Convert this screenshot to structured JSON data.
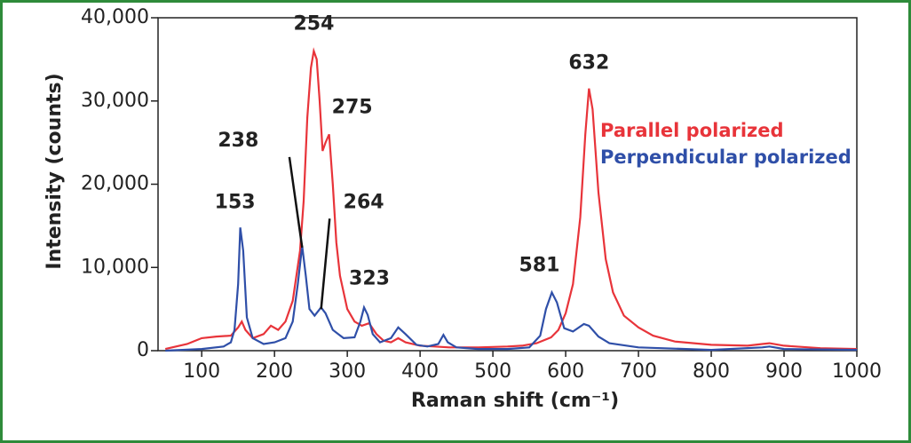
{
  "chart_data": {
    "type": "line",
    "x_label": "Raman shift (cm⁻¹)",
    "y_label": "Intensity (counts)",
    "xlim": [
      40,
      1000
    ],
    "ylim": [
      0,
      40000
    ],
    "xticks": [
      100,
      200,
      300,
      400,
      500,
      600,
      700,
      800,
      900,
      1000
    ],
    "yticks": [
      0,
      {
        "value": 10000,
        "label": "10,000"
      },
      {
        "value": 20000,
        "label": "20,000"
      },
      {
        "value": 30000,
        "label": "30,000"
      },
      {
        "value": 40000,
        "label": "40,000"
      }
    ],
    "series": [
      {
        "name": "Parallel polarized",
        "color": "#e8343a",
        "x": [
          50,
          80,
          100,
          120,
          140,
          150,
          155,
          160,
          170,
          185,
          195,
          205,
          215,
          225,
          235,
          240,
          245,
          250,
          254,
          258,
          262,
          266,
          270,
          275,
          280,
          285,
          290,
          300,
          310,
          320,
          330,
          340,
          350,
          360,
          370,
          380,
          400,
          420,
          440,
          460,
          480,
          500,
          520,
          540,
          560,
          580,
          590,
          600,
          610,
          620,
          627,
          632,
          637,
          645,
          655,
          665,
          680,
          700,
          720,
          750,
          800,
          850,
          870,
          880,
          900,
          950,
          1000
        ],
        "values": [
          200,
          800,
          1500,
          1700,
          1800,
          2800,
          3500,
          2500,
          1500,
          2000,
          3000,
          2500,
          3500,
          6000,
          12000,
          18000,
          28000,
          34000,
          36000,
          35000,
          30000,
          24000,
          25000,
          26000,
          20000,
          13000,
          9000,
          5000,
          3500,
          3000,
          3300,
          2000,
          1200,
          1000,
          1500,
          1000,
          600,
          500,
          400,
          400,
          400,
          450,
          500,
          600,
          900,
          1600,
          2500,
          4500,
          8000,
          16000,
          26000,
          31500,
          29000,
          19000,
          11000,
          7000,
          4200,
          2800,
          1800,
          1100,
          700,
          600,
          800,
          900,
          600,
          300,
          200
        ]
      },
      {
        "name": "Perpendicular polarized",
        "color": "#2f4fa8",
        "x": [
          50,
          100,
          130,
          140,
          145,
          150,
          153,
          157,
          162,
          170,
          185,
          200,
          215,
          225,
          232,
          238,
          243,
          248,
          255,
          264,
          270,
          280,
          295,
          310,
          318,
          323,
          328,
          335,
          345,
          360,
          370,
          380,
          395,
          410,
          425,
          432,
          438,
          450,
          480,
          520,
          550,
          565,
          573,
          581,
          588,
          598,
          610,
          625,
          632,
          645,
          660,
          700,
          800,
          870,
          880,
          900,
          1000
        ],
        "values": [
          0,
          200,
          500,
          1000,
          2500,
          8000,
          14800,
          12000,
          4000,
          1500,
          800,
          1000,
          1500,
          3500,
          8000,
          12600,
          9000,
          5000,
          4200,
          5200,
          4500,
          2500,
          1500,
          1600,
          3500,
          5200,
          4300,
          2000,
          1000,
          1500,
          2800,
          2000,
          700,
          500,
          800,
          1900,
          1000,
          400,
          200,
          200,
          400,
          1800,
          5000,
          7000,
          5800,
          2700,
          2300,
          3200,
          3000,
          1700,
          900,
          400,
          100,
          400,
          500,
          200,
          100
        ]
      }
    ],
    "peak_labels": [
      254,
      632,
      275,
      238,
      264,
      153,
      323,
      581
    ]
  }
}
